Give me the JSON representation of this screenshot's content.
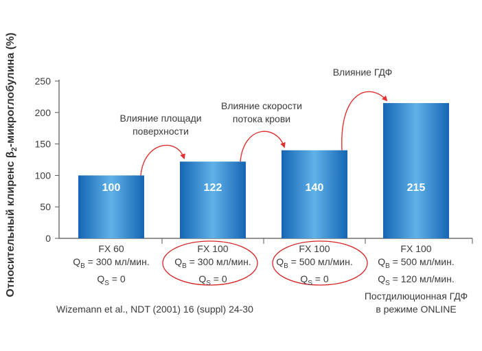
{
  "chart_data": {
    "type": "bar",
    "ylabel_prefix": "Относительный клиренс β",
    "ylabel_sub": "2",
    "ylabel_suffix": "-микроглобулина (%)",
    "ylim": [
      0,
      250
    ],
    "yticks": [
      "0",
      "50",
      "100",
      "150",
      "200",
      "250"
    ],
    "values": [
      100,
      122,
      140,
      215
    ],
    "data_labels": [
      "100",
      "122",
      "140",
      "215"
    ],
    "bar_color": "#1f7cc9",
    "categories": [
      {
        "name": "FX 60",
        "qb_value": " = 300 мл/мин.",
        "qs_value": " = 0",
        "extra": []
      },
      {
        "name": "FX 100",
        "qb_value": " = 300 мл/мин.",
        "qs_value": " = 0",
        "extra": []
      },
      {
        "name": "FX 100",
        "qb_value": " = 500 мл/мин.",
        "qs_value": " = 0",
        "extra": []
      },
      {
        "name": "FX 100",
        "qb_value": " = 500 мл/мин.",
        "qs_value": " = 120 мл/мин.",
        "extra": [
          "Постдилюционная ГДФ",
          "в режиме ONLINE"
        ]
      }
    ],
    "q_letter": "Q",
    "qb_sub": "B",
    "qs_sub": "S",
    "annotations": [
      {
        "lines": [
          "Влияние площади",
          "поверхности"
        ],
        "from_bar": 0,
        "to_bar": 1
      },
      {
        "lines": [
          "Влияние скорости",
          "потока крови"
        ],
        "from_bar": 1,
        "to_bar": 2
      },
      {
        "lines": [
          "Влияние ГДФ"
        ],
        "from_bar": 2,
        "to_bar": 3
      }
    ],
    "arrow_color": "#e03030",
    "highlighted_categories": [
      1,
      2
    ],
    "source": "Wizemann et al., NDT (2001) 16 (suppl) 24-30"
  }
}
